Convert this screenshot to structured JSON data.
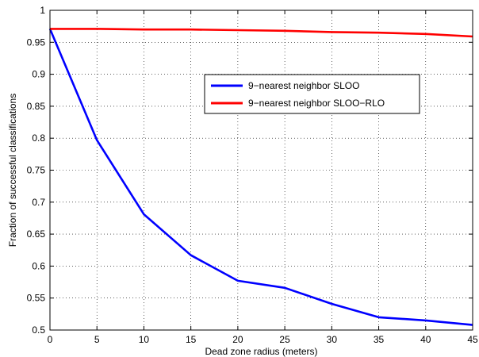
{
  "chart_data": {
    "type": "line",
    "title": "",
    "xlabel": "Dead zone radius (meters)",
    "ylabel": "Fraction of successful classifications",
    "xlim": [
      0,
      45
    ],
    "ylim": [
      0.5,
      1
    ],
    "xticks": [
      0,
      5,
      10,
      15,
      20,
      25,
      30,
      35,
      40,
      45
    ],
    "yticks": [
      0.5,
      0.55,
      0.6,
      0.65,
      0.7,
      0.75,
      0.8,
      0.85,
      0.9,
      0.95,
      1
    ],
    "grid": true,
    "legend_position": "center-right",
    "x": [
      0,
      5,
      10,
      15,
      20,
      25,
      30,
      35,
      40,
      45
    ],
    "series": [
      {
        "name": "9−nearest neighbor SLOO",
        "color": "#0000ff",
        "values": [
          0.971,
          0.797,
          0.681,
          0.617,
          0.577,
          0.566,
          0.541,
          0.52,
          0.515,
          0.508
        ]
      },
      {
        "name": "9−nearest neighbor SLOO−RLO",
        "color": "#ff0000",
        "values": [
          0.971,
          0.971,
          0.97,
          0.97,
          0.969,
          0.968,
          0.966,
          0.965,
          0.963,
          0.959
        ]
      }
    ]
  }
}
